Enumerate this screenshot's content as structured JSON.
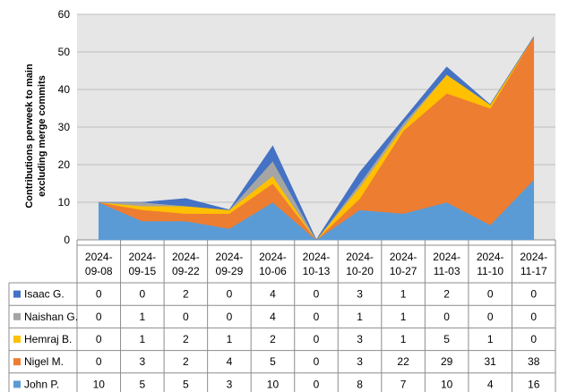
{
  "chart_data": {
    "type": "area",
    "stacked": true,
    "ylabel": "Contributions perweek to main\nexcluding  merge commits",
    "ylim": [
      0,
      60
    ],
    "yticks": [
      0,
      10,
      20,
      30,
      40,
      50,
      60
    ],
    "categories": [
      "2024-09-08",
      "2024-09-15",
      "2024-09-22",
      "2024-09-29",
      "2024-10-06",
      "2024-10-13",
      "2024-10-20",
      "2024-10-27",
      "2024-11-03",
      "2024-11-10",
      "2024-11-17"
    ],
    "category_lines": [
      [
        "2024-",
        "09-08"
      ],
      [
        "2024-",
        "09-15"
      ],
      [
        "2024-",
        "09-22"
      ],
      [
        "2024-",
        "09-29"
      ],
      [
        "2024-",
        "10-06"
      ],
      [
        "2024-",
        "10-13"
      ],
      [
        "2024-",
        "10-20"
      ],
      [
        "2024-",
        "10-27"
      ],
      [
        "2024-",
        "11-03"
      ],
      [
        "2024-",
        "11-10"
      ],
      [
        "2024-",
        "11-17"
      ]
    ],
    "grid": true,
    "legend": "data-table-left",
    "series": [
      {
        "name": "John P.",
        "color": "#5b9bd5",
        "values": [
          10,
          5,
          5,
          3,
          10,
          0,
          8,
          7,
          10,
          4,
          16
        ]
      },
      {
        "name": "Nigel M.",
        "color": "#ed7d31",
        "values": [
          0,
          3,
          2,
          4,
          5,
          0,
          3,
          22,
          29,
          31,
          38
        ]
      },
      {
        "name": "Hemraj B.",
        "color": "#ffc000",
        "values": [
          0,
          1,
          2,
          1,
          2,
          0,
          3,
          1,
          5,
          1,
          0
        ]
      },
      {
        "name": "Naishan G.",
        "color": "#a5a5a5",
        "values": [
          0,
          1,
          0,
          0,
          4,
          0,
          1,
          1,
          0,
          0,
          0
        ]
      },
      {
        "name": "Isaac G.",
        "color": "#4472c4",
        "values": [
          0,
          0,
          2,
          0,
          4,
          0,
          3,
          1,
          2,
          0,
          0
        ]
      }
    ]
  }
}
